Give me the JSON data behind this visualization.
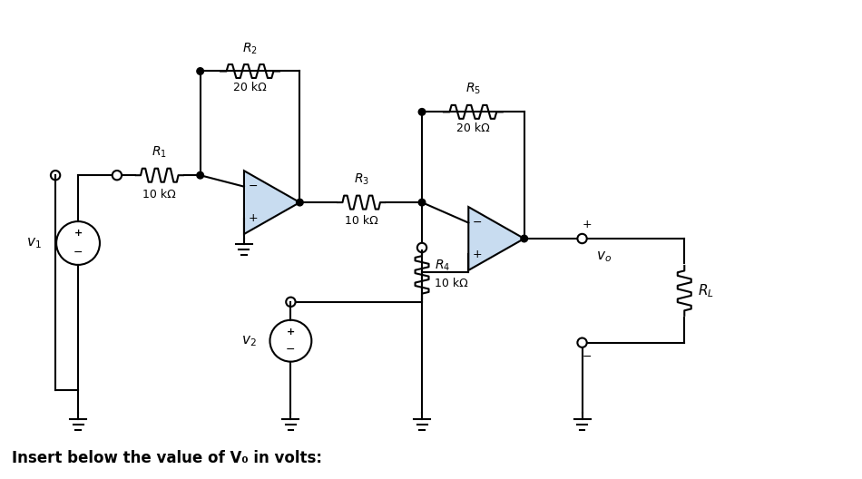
{
  "background_color": "#ffffff",
  "line_color": "#000000",
  "opamp_fill": "#c8dcf0",
  "bottom_text": "Insert below the value of V₀ in volts:",
  "figsize": [
    9.5,
    5.28
  ],
  "dpi": 100,
  "r1_label": "$R_1$",
  "r1_val": "10 kΩ",
  "r2_label": "$R_2$",
  "r2_val": "20 kΩ",
  "r3_label": "$R_3$",
  "r3_val": "10 kΩ",
  "r4_label": "$R_4$",
  "r4_val": "10 kΩ",
  "r5_label": "$R_5$",
  "r5_val": "20 kΩ",
  "rl_label": "$R_L$",
  "v1_label": "$v_1$",
  "v2_label": "$v_2$",
  "vo_label": "$v_o$"
}
